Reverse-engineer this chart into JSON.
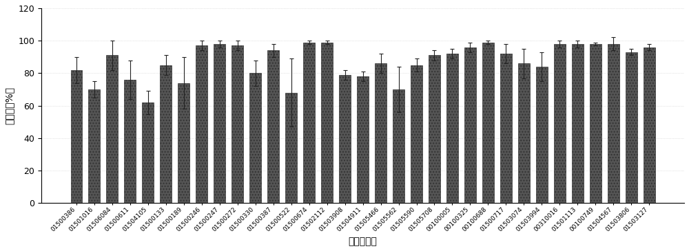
{
  "categories": [
    "01500386",
    "01501016",
    "01506084",
    "01500611",
    "01504105",
    "01500133",
    "01500189",
    "01500246",
    "01500247",
    "01500272",
    "01500330",
    "01500387",
    "01500522",
    "01500674",
    "01502112",
    "01503908",
    "01504911",
    "01505466",
    "01505562",
    "01505590",
    "01505708",
    "00100005",
    "00100325",
    "00100688",
    "01500717",
    "01503074",
    "01503994",
    "00310016",
    "01501113",
    "00100749",
    "01504567",
    "01503806",
    "01503127"
  ],
  "values": [
    82,
    70,
    91,
    76,
    62,
    85,
    74,
    97,
    98,
    97,
    80,
    94,
    68,
    99,
    99,
    79,
    78,
    86,
    70,
    85,
    91,
    92,
    96,
    99,
    92,
    86,
    84,
    98,
    98,
    98,
    98,
    93,
    96
  ],
  "errors": [
    8,
    5,
    9,
    12,
    7,
    6,
    16,
    3,
    2,
    3,
    8,
    4,
    21,
    1,
    1,
    3,
    3,
    6,
    14,
    4,
    3,
    3,
    3,
    1,
    6,
    9,
    9,
    2,
    2,
    1,
    4,
    2,
    2
  ],
  "bar_color": "#555555",
  "ylabel": "抑制率（%）",
  "xlabel": "化合物编号",
  "ylim": [
    0,
    120
  ],
  "yticks": [
    0,
    20,
    40,
    60,
    80,
    100,
    120
  ],
  "background_color": "#ffffff",
  "edge_color": "#333333",
  "grid_color": "#cccccc"
}
